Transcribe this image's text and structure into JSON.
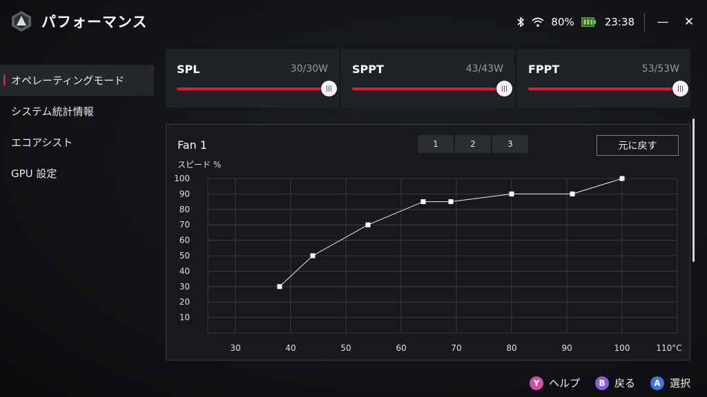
{
  "header": {
    "title": "パフォーマンス",
    "battery": "80%",
    "time": "23:38",
    "icons": [
      "bluetooth-icon",
      "wifi-icon",
      "battery-charging-icon",
      "minimize-icon",
      "close-icon"
    ],
    "minimize_glyph": "—",
    "close_glyph": "✕"
  },
  "sidebar": {
    "items": [
      {
        "label": "オペレーティングモード",
        "active": true
      },
      {
        "label": "システム統計情報",
        "active": false
      },
      {
        "label": "エコアシスト",
        "active": false
      },
      {
        "label": "GPU 設定",
        "active": false
      }
    ]
  },
  "power": [
    {
      "name": "SPL",
      "value": "30/30W",
      "level": 1.0
    },
    {
      "name": "SPPT",
      "value": "43/43W",
      "level": 1.0
    },
    {
      "name": "FPPT",
      "value": "53/53W",
      "level": 1.0
    }
  ],
  "fan": {
    "title": "Fan 1",
    "tabs": [
      "1",
      "2",
      "3"
    ],
    "reset_label": "元に戻す",
    "ylabel": "スピード %"
  },
  "chart_data": {
    "type": "line",
    "x": [
      38,
      44,
      54,
      64,
      69,
      80,
      91,
      100
    ],
    "y": [
      30,
      50,
      70,
      85,
      85,
      90,
      90,
      100
    ],
    "xticks": [
      "30",
      "40",
      "50",
      "60",
      "70",
      "80",
      "90",
      "100",
      "110°C"
    ],
    "yticks": [
      "100",
      "90",
      "80",
      "70",
      "60",
      "50",
      "40",
      "30",
      "20",
      "10"
    ],
    "xlim": [
      25,
      110
    ],
    "ylim": [
      0,
      100
    ],
    "ylabel": "スピード %",
    "grid": true
  },
  "hints": [
    {
      "key": "Y",
      "label": "ヘルプ",
      "color": "#d04fa8"
    },
    {
      "key": "B",
      "label": "戻る",
      "color": "#8a5cd9"
    },
    {
      "key": "A",
      "label": "選択",
      "color": "#3f74e0"
    }
  ],
  "colors": {
    "accent": "#e0173f",
    "grid": "#3a3d41"
  }
}
